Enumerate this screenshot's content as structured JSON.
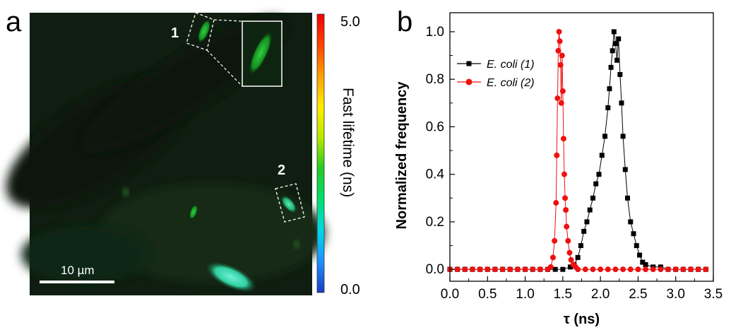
{
  "panel_a": {
    "letter": "a",
    "roi_labels": [
      "1",
      "2"
    ],
    "scale_bar_label": "10 µm",
    "colorbar": {
      "title": "Fast lifetime (ns)",
      "max_label": "5.0",
      "min_label": "0.0",
      "colors": [
        "#1a3cc8",
        "#1e90ff",
        "#00d8e8",
        "#00e070",
        "#22cc22",
        "#b8e800",
        "#ffee00",
        "#ffa000",
        "#ff4400",
        "#ee0000"
      ]
    }
  },
  "panel_b": {
    "letter": "b"
  },
  "chart_data": {
    "type": "line",
    "xlabel": "τ (ns)",
    "ylabel": "Normalized frequency",
    "xlim": [
      0.0,
      3.5
    ],
    "ylim": [
      -0.05,
      1.08
    ],
    "x_ticks": [
      "0.0",
      "0.5",
      "1.0",
      "1.5",
      "2.0",
      "2.5",
      "3.0",
      "3.5"
    ],
    "y_ticks": [
      "0.0",
      "0.2",
      "0.4",
      "0.6",
      "0.8",
      "1.0"
    ],
    "grid": false,
    "legend_position": "top-left",
    "series": [
      {
        "name": "E. coli (1)",
        "color": "#000000",
        "marker": "square",
        "x": [
          0.0,
          0.1,
          0.2,
          0.3,
          0.4,
          0.5,
          0.6,
          0.7,
          0.8,
          0.9,
          1.0,
          1.1,
          1.2,
          1.3,
          1.4,
          1.5,
          1.6,
          1.65,
          1.7,
          1.74,
          1.78,
          1.82,
          1.86,
          1.9,
          1.94,
          1.98,
          2.02,
          2.06,
          2.1,
          2.12,
          2.14,
          2.16,
          2.18,
          2.2,
          2.22,
          2.24,
          2.26,
          2.28,
          2.3,
          2.33,
          2.36,
          2.4,
          2.44,
          2.48,
          2.52,
          2.56,
          2.6,
          2.7,
          2.8,
          2.9,
          3.0,
          3.1,
          3.2,
          3.3,
          3.4
        ],
        "y": [
          0.0,
          0.0,
          0.0,
          0.0,
          0.0,
          0.0,
          0.0,
          0.0,
          0.0,
          0.0,
          0.0,
          0.0,
          0.0,
          0.0,
          0.0,
          0.0,
          0.01,
          0.02,
          0.05,
          0.1,
          0.16,
          0.2,
          0.25,
          0.3,
          0.36,
          0.4,
          0.48,
          0.56,
          0.68,
          0.76,
          0.85,
          0.92,
          1.0,
          0.95,
          0.88,
          0.97,
          0.82,
          0.7,
          0.56,
          0.42,
          0.3,
          0.2,
          0.15,
          0.1,
          0.06,
          0.03,
          0.02,
          0.01,
          0.01,
          0.0,
          0.0,
          0.0,
          0.0,
          0.0,
          0.0
        ]
      },
      {
        "name": "E. coli (2)",
        "color": "#ee1111",
        "marker": "circle",
        "x": [
          0.0,
          0.1,
          0.2,
          0.3,
          0.4,
          0.5,
          0.6,
          0.7,
          0.8,
          0.9,
          1.0,
          1.1,
          1.2,
          1.3,
          1.34,
          1.37,
          1.39,
          1.41,
          1.42,
          1.43,
          1.44,
          1.45,
          1.46,
          1.47,
          1.48,
          1.49,
          1.5,
          1.51,
          1.52,
          1.53,
          1.54,
          1.55,
          1.57,
          1.59,
          1.61,
          1.64,
          1.67,
          1.7,
          1.8,
          1.9,
          2.0,
          2.1,
          2.2,
          2.3,
          2.4,
          2.5,
          2.6,
          2.7,
          2.8,
          2.9,
          3.0,
          3.1,
          3.2,
          3.3,
          3.4
        ],
        "y": [
          0.0,
          0.0,
          0.0,
          0.0,
          0.0,
          0.0,
          0.0,
          0.0,
          0.0,
          0.0,
          0.0,
          0.0,
          0.0,
          0.0,
          0.01,
          0.05,
          0.12,
          0.28,
          0.48,
          0.72,
          0.92,
          1.0,
          0.96,
          0.86,
          0.7,
          0.9,
          0.75,
          0.55,
          0.4,
          0.3,
          0.25,
          0.18,
          0.12,
          0.07,
          0.04,
          0.02,
          0.01,
          0.0,
          0.0,
          0.0,
          0.0,
          0.0,
          0.0,
          0.0,
          0.0,
          0.0,
          0.0,
          0.0,
          0.0,
          0.0,
          0.0,
          0.0,
          0.0,
          0.0,
          0.0
        ]
      }
    ]
  }
}
